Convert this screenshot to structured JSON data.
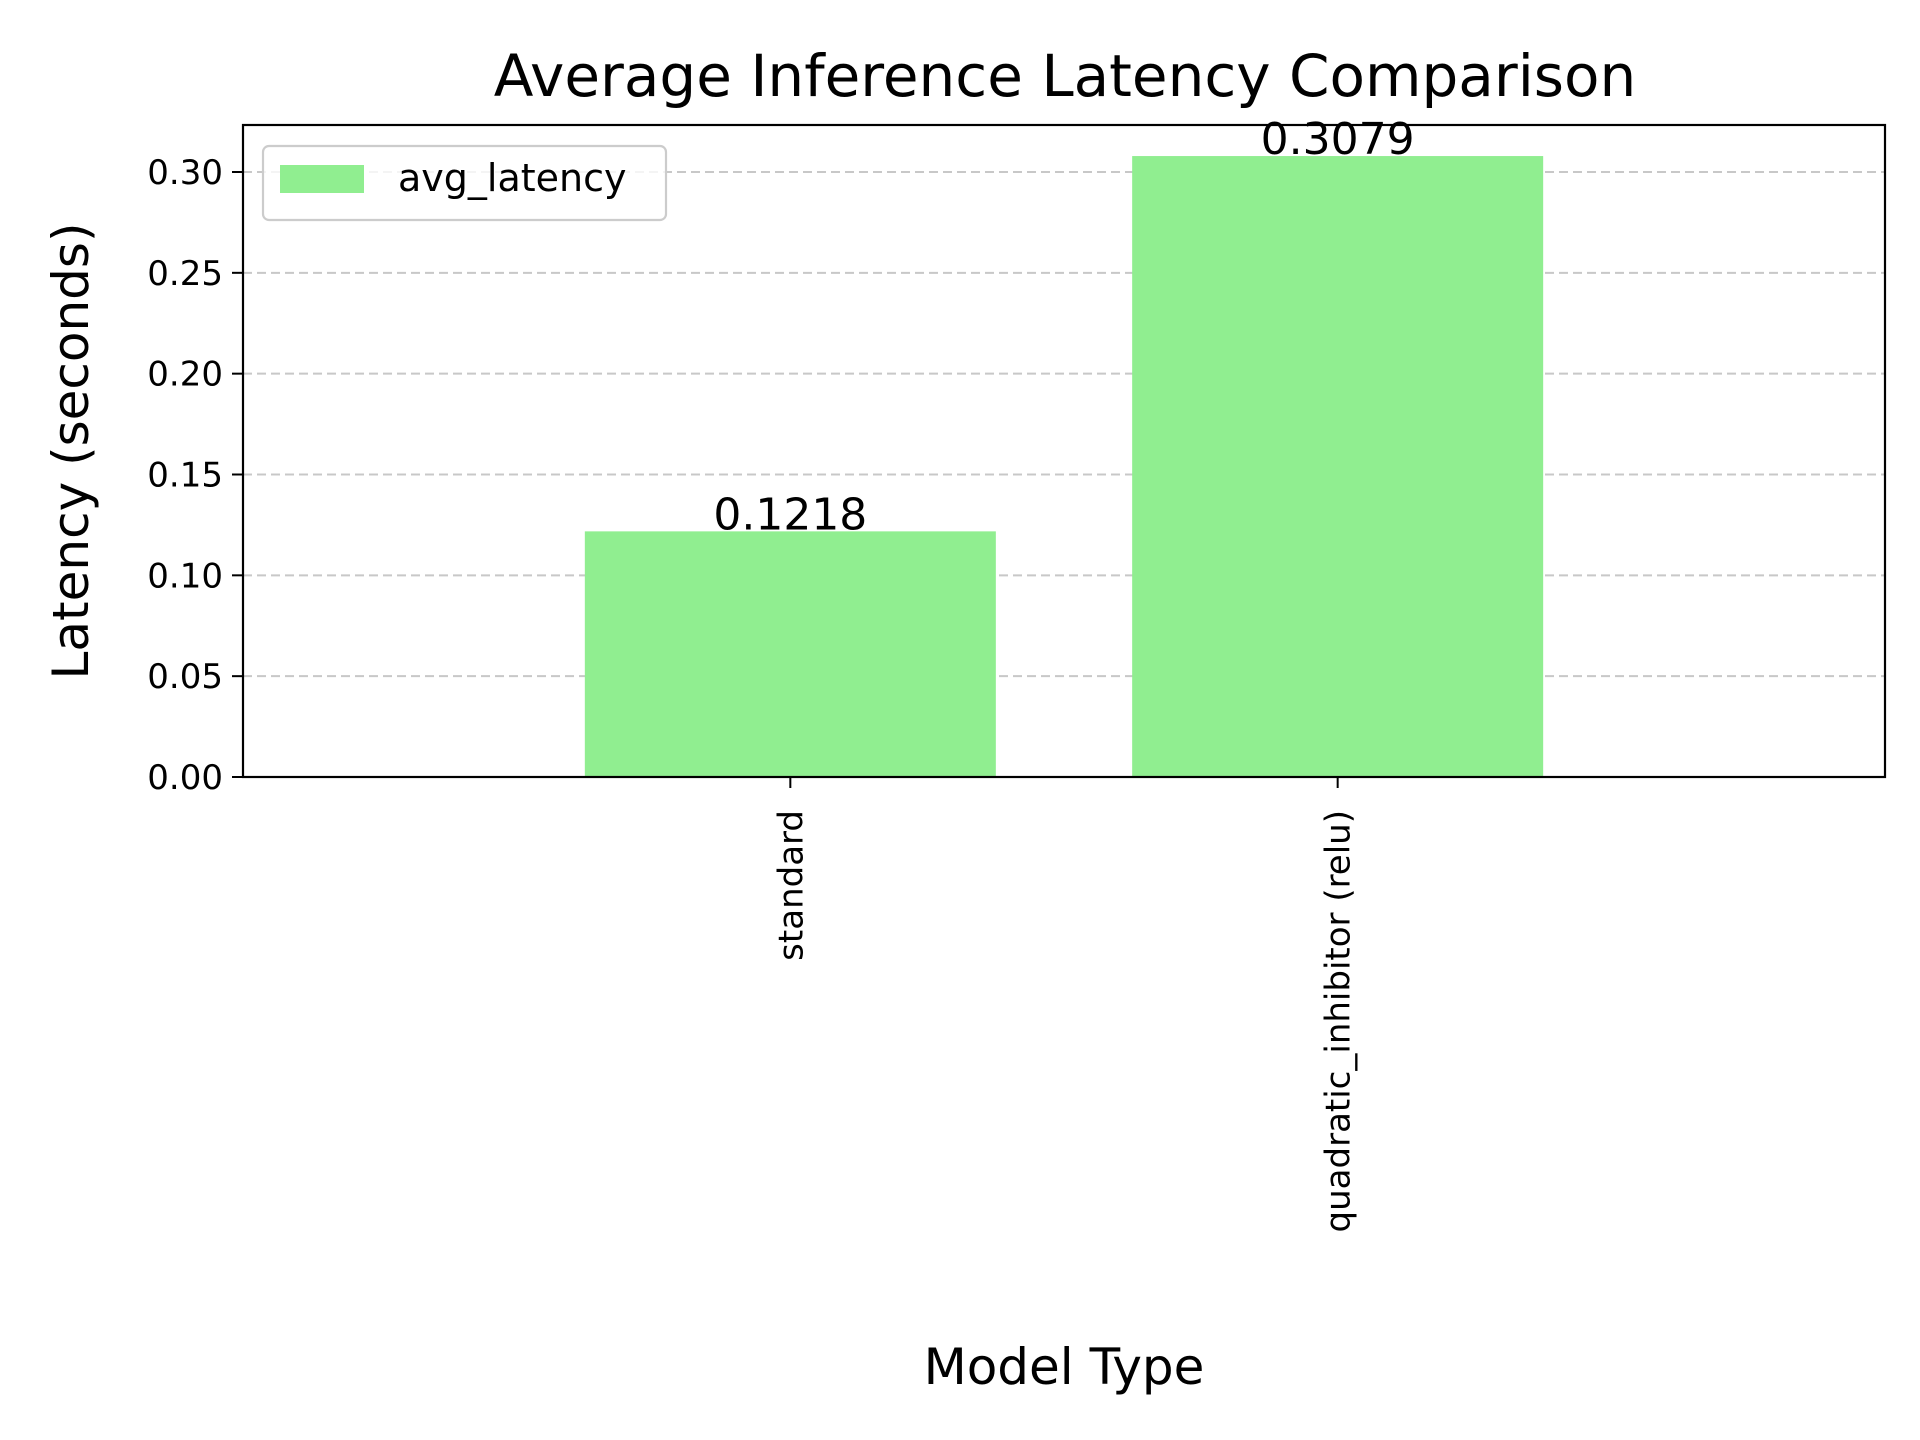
{
  "chart_data": {
    "type": "bar",
    "title": "Average Inference Latency Comparison",
    "xlabel": "Model Type",
    "ylabel": "Latency (seconds)",
    "categories": [
      "standard",
      "quadratic_inhibitor (relu)"
    ],
    "series": [
      {
        "name": "avg_latency",
        "values": [
          0.1218,
          0.3079
        ],
        "color": "#90ee90"
      }
    ],
    "data_labels": [
      "0.1218",
      "0.3079"
    ],
    "ylim": [
      0,
      0.3233
    ],
    "yticks": [
      0.0,
      0.05,
      0.1,
      0.15,
      0.2,
      0.25,
      0.3
    ],
    "ytick_labels": [
      "0.00",
      "0.05",
      "0.10",
      "0.15",
      "0.20",
      "0.25",
      "0.30"
    ],
    "grid": {
      "axis": "y",
      "style": "dashed",
      "color": "#c8c8c8"
    },
    "legend": {
      "position": "top-left"
    },
    "xtick_rotation": "vertical"
  }
}
